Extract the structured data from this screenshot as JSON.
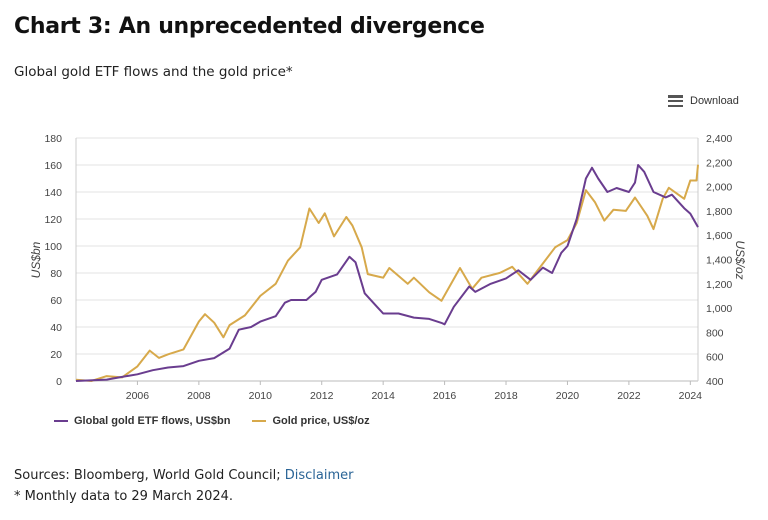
{
  "title": "Chart 3: An unprecedented divergence",
  "subtitle": "Global gold ETF flows and the gold price*",
  "download_label": "Download",
  "sources_label": "Sources: Bloomberg, World Gold Council;",
  "disclaimer_link": "Disclaimer",
  "note": "* Monthly data to 29 March 2024.",
  "chart_data": {
    "type": "line",
    "title": "",
    "xlabel": "",
    "ylabel": "US$bn",
    "y2label": "US$/oz",
    "xlim": [
      2004.0,
      2024.25
    ],
    "ylim": [
      0,
      180
    ],
    "y2lim": [
      400,
      2400
    ],
    "xticks": [
      "2006",
      "2008",
      "2010",
      "2012",
      "2014",
      "2016",
      "2018",
      "2020",
      "2022",
      "2024"
    ],
    "yticks": [
      "0",
      "20",
      "40",
      "60",
      "80",
      "100",
      "120",
      "140",
      "160",
      "180"
    ],
    "y2ticks": [
      "400",
      "600",
      "800",
      "1,000",
      "1,200",
      "1,400",
      "1,600",
      "1,800",
      "2,000",
      "2,200",
      "2,400"
    ],
    "grid": true,
    "legend_position": "bottom",
    "series": [
      {
        "name": "Global gold ETF flows, US$bn",
        "axis": "left",
        "color": "#6a3d8f",
        "x": [
          2004.0,
          2005.0,
          2005.5,
          2006.0,
          2006.5,
          2007.0,
          2007.5,
          2008.0,
          2008.5,
          2009.0,
          2009.3,
          2009.7,
          2010.0,
          2010.5,
          2010.8,
          2011.0,
          2011.5,
          2011.8,
          2012.0,
          2012.5,
          2012.9,
          2013.1,
          2013.4,
          2013.8,
          2014.0,
          2014.5,
          2015.0,
          2015.5,
          2015.9,
          2016.0,
          2016.3,
          2016.8,
          2017.0,
          2017.5,
          2018.0,
          2018.4,
          2018.8,
          2019.2,
          2019.5,
          2019.8,
          2020.0,
          2020.3,
          2020.6,
          2020.8,
          2021.0,
          2021.3,
          2021.6,
          2022.0,
          2022.2,
          2022.3,
          2022.5,
          2022.8,
          2023.2,
          2023.4,
          2023.8,
          2024.0,
          2024.25
        ],
        "y": [
          0,
          1,
          3,
          5,
          8,
          10,
          11,
          15,
          17,
          24,
          38,
          40,
          44,
          48,
          58,
          60,
          60,
          66,
          75,
          79,
          92,
          88,
          65,
          55,
          50,
          50,
          47,
          46,
          43,
          42,
          55,
          70,
          66,
          72,
          76,
          82,
          75,
          84,
          80,
          95,
          100,
          120,
          150,
          158,
          150,
          140,
          143,
          140,
          147,
          160,
          155,
          140,
          136,
          138,
          128,
          124,
          114
        ]
      },
      {
        "name": "Gold price, US$/oz",
        "axis": "right",
        "color": "#d7a94b",
        "x": [
          2004.0,
          2004.5,
          2005.0,
          2005.5,
          2006.0,
          2006.4,
          2006.7,
          2007.0,
          2007.5,
          2008.0,
          2008.2,
          2008.5,
          2008.8,
          2009.0,
          2009.5,
          2010.0,
          2010.5,
          2010.9,
          2011.3,
          2011.6,
          2011.9,
          2012.1,
          2012.4,
          2012.8,
          2013.0,
          2013.3,
          2013.5,
          2014.0,
          2014.2,
          2014.8,
          2015.0,
          2015.5,
          2015.9,
          2016.5,
          2016.9,
          2017.2,
          2017.8,
          2018.2,
          2018.7,
          2019.0,
          2019.6,
          2020.0,
          2020.3,
          2020.6,
          2020.9,
          2021.2,
          2021.5,
          2021.9,
          2022.2,
          2022.6,
          2022.8,
          2023.1,
          2023.3,
          2023.8,
          2024.0,
          2024.2,
          2024.25
        ],
        "y": [
          410,
          400,
          440,
          430,
          520,
          650,
          590,
          620,
          660,
          890,
          950,
          880,
          760,
          860,
          940,
          1100,
          1200,
          1390,
          1500,
          1820,
          1700,
          1780,
          1590,
          1750,
          1680,
          1500,
          1280,
          1250,
          1330,
          1200,
          1250,
          1130,
          1060,
          1330,
          1160,
          1250,
          1290,
          1340,
          1200,
          1300,
          1500,
          1560,
          1700,
          1970,
          1870,
          1720,
          1810,
          1800,
          1910,
          1760,
          1650,
          1900,
          1990,
          1900,
          2050,
          2050,
          2180
        ]
      }
    ]
  }
}
